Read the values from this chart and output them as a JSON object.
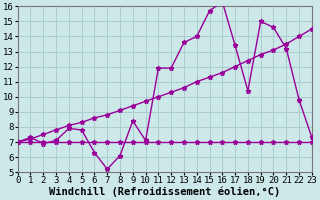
{
  "xlabel": "Windchill (Refroidissement éolien,°C)",
  "xlim": [
    0,
    23
  ],
  "ylim": [
    5,
    16
  ],
  "yticks": [
    5,
    6,
    7,
    8,
    9,
    10,
    11,
    12,
    13,
    14,
    15,
    16
  ],
  "xticks": [
    0,
    1,
    2,
    3,
    4,
    5,
    6,
    7,
    8,
    9,
    10,
    11,
    12,
    13,
    14,
    15,
    16,
    17,
    18,
    19,
    20,
    21,
    22,
    23
  ],
  "bg_color": "#cce8e8",
  "grid_color": "#aacccc",
  "line_color": "#990099",
  "line1_x": [
    0,
    1,
    2,
    3,
    4,
    5,
    6,
    7,
    8,
    9,
    10,
    11,
    12,
    13,
    14,
    15,
    16,
    17,
    18,
    19,
    20,
    21,
    22,
    23
  ],
  "line1_y": [
    7.0,
    7.0,
    7.0,
    7.0,
    7.0,
    7.0,
    7.0,
    7.0,
    7.0,
    7.0,
    7.0,
    7.0,
    7.0,
    7.0,
    7.0,
    7.0,
    7.0,
    7.0,
    7.0,
    7.0,
    7.0,
    7.0,
    7.0,
    7.0
  ],
  "line2_x": [
    0,
    1,
    2,
    3,
    4,
    5,
    6,
    7,
    8,
    9,
    10,
    11,
    12,
    13,
    14,
    15,
    16,
    17,
    18,
    19,
    20,
    21,
    22,
    23
  ],
  "line2_y": [
    7.0,
    7.2,
    7.5,
    7.8,
    8.1,
    8.3,
    8.6,
    8.8,
    9.1,
    9.4,
    9.7,
    10.0,
    10.3,
    10.6,
    11.0,
    11.3,
    11.6,
    12.0,
    12.4,
    12.8,
    13.1,
    13.5,
    14.0,
    14.5
  ],
  "line3_x": [
    0,
    1,
    2,
    3,
    4,
    5,
    6,
    7,
    8,
    9,
    10,
    11,
    12,
    13,
    14,
    15,
    16,
    17,
    18,
    19,
    20,
    21,
    22,
    23
  ],
  "line3_y": [
    7.0,
    7.3,
    6.9,
    7.1,
    7.9,
    7.8,
    6.3,
    5.2,
    6.1,
    8.4,
    7.1,
    11.9,
    11.9,
    13.6,
    14.0,
    15.7,
    16.3,
    13.4,
    10.4,
    15.0,
    14.6,
    13.2,
    9.8,
    7.3
  ],
  "tick_fontsize": 6.5,
  "label_fontsize": 7.5
}
